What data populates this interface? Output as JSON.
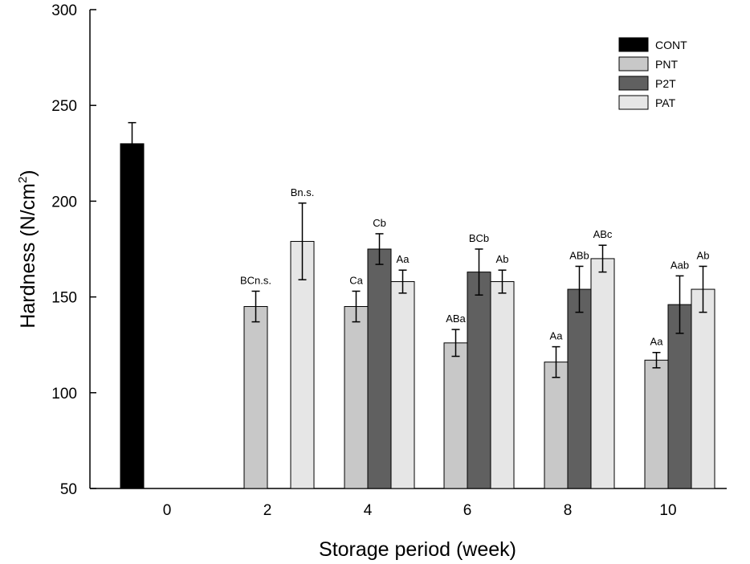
{
  "chart_data": {
    "type": "bar",
    "title": "",
    "xlabel": "Storage period (week)",
    "ylabel": "Hardness (N/cm",
    "ylabel_superscript": "2",
    "ylabel_suffix": ")",
    "ylim": [
      50,
      300
    ],
    "yticks": [
      50,
      100,
      150,
      200,
      250,
      300
    ],
    "categories": [
      "0",
      "2",
      "4",
      "6",
      "8",
      "10"
    ],
    "legend_position": "top-right",
    "series": [
      {
        "name": "CONT",
        "color": "#000000",
        "values": [
          230,
          null,
          null,
          null,
          null,
          null
        ],
        "errors": [
          11,
          null,
          null,
          null,
          null,
          null
        ],
        "labels": [
          "",
          "",
          "",
          "",
          "",
          ""
        ]
      },
      {
        "name": "PNT",
        "color": "#c8c8c8",
        "values": [
          null,
          145,
          145,
          126,
          116,
          117
        ],
        "errors": [
          null,
          8,
          8,
          7,
          8,
          4
        ],
        "labels": [
          "",
          "BCn.s.",
          "Ca",
          "ABa",
          "Aa",
          "Aa"
        ]
      },
      {
        "name": "P2T",
        "color": "#606060",
        "values": [
          null,
          null,
          175,
          163,
          154,
          146
        ],
        "errors": [
          null,
          null,
          8,
          12,
          12,
          15
        ],
        "labels": [
          "",
          "",
          "Cb",
          "BCb",
          "ABb",
          "Aab"
        ]
      },
      {
        "name": "PAT",
        "color": "#e6e6e6",
        "values": [
          null,
          179,
          158,
          158,
          170,
          154
        ],
        "errors": [
          null,
          20,
          6,
          6,
          7,
          12
        ],
        "labels": [
          "",
          "Bn.s.",
          "Aa",
          "Ab",
          "ABc",
          "Ab"
        ]
      }
    ]
  }
}
